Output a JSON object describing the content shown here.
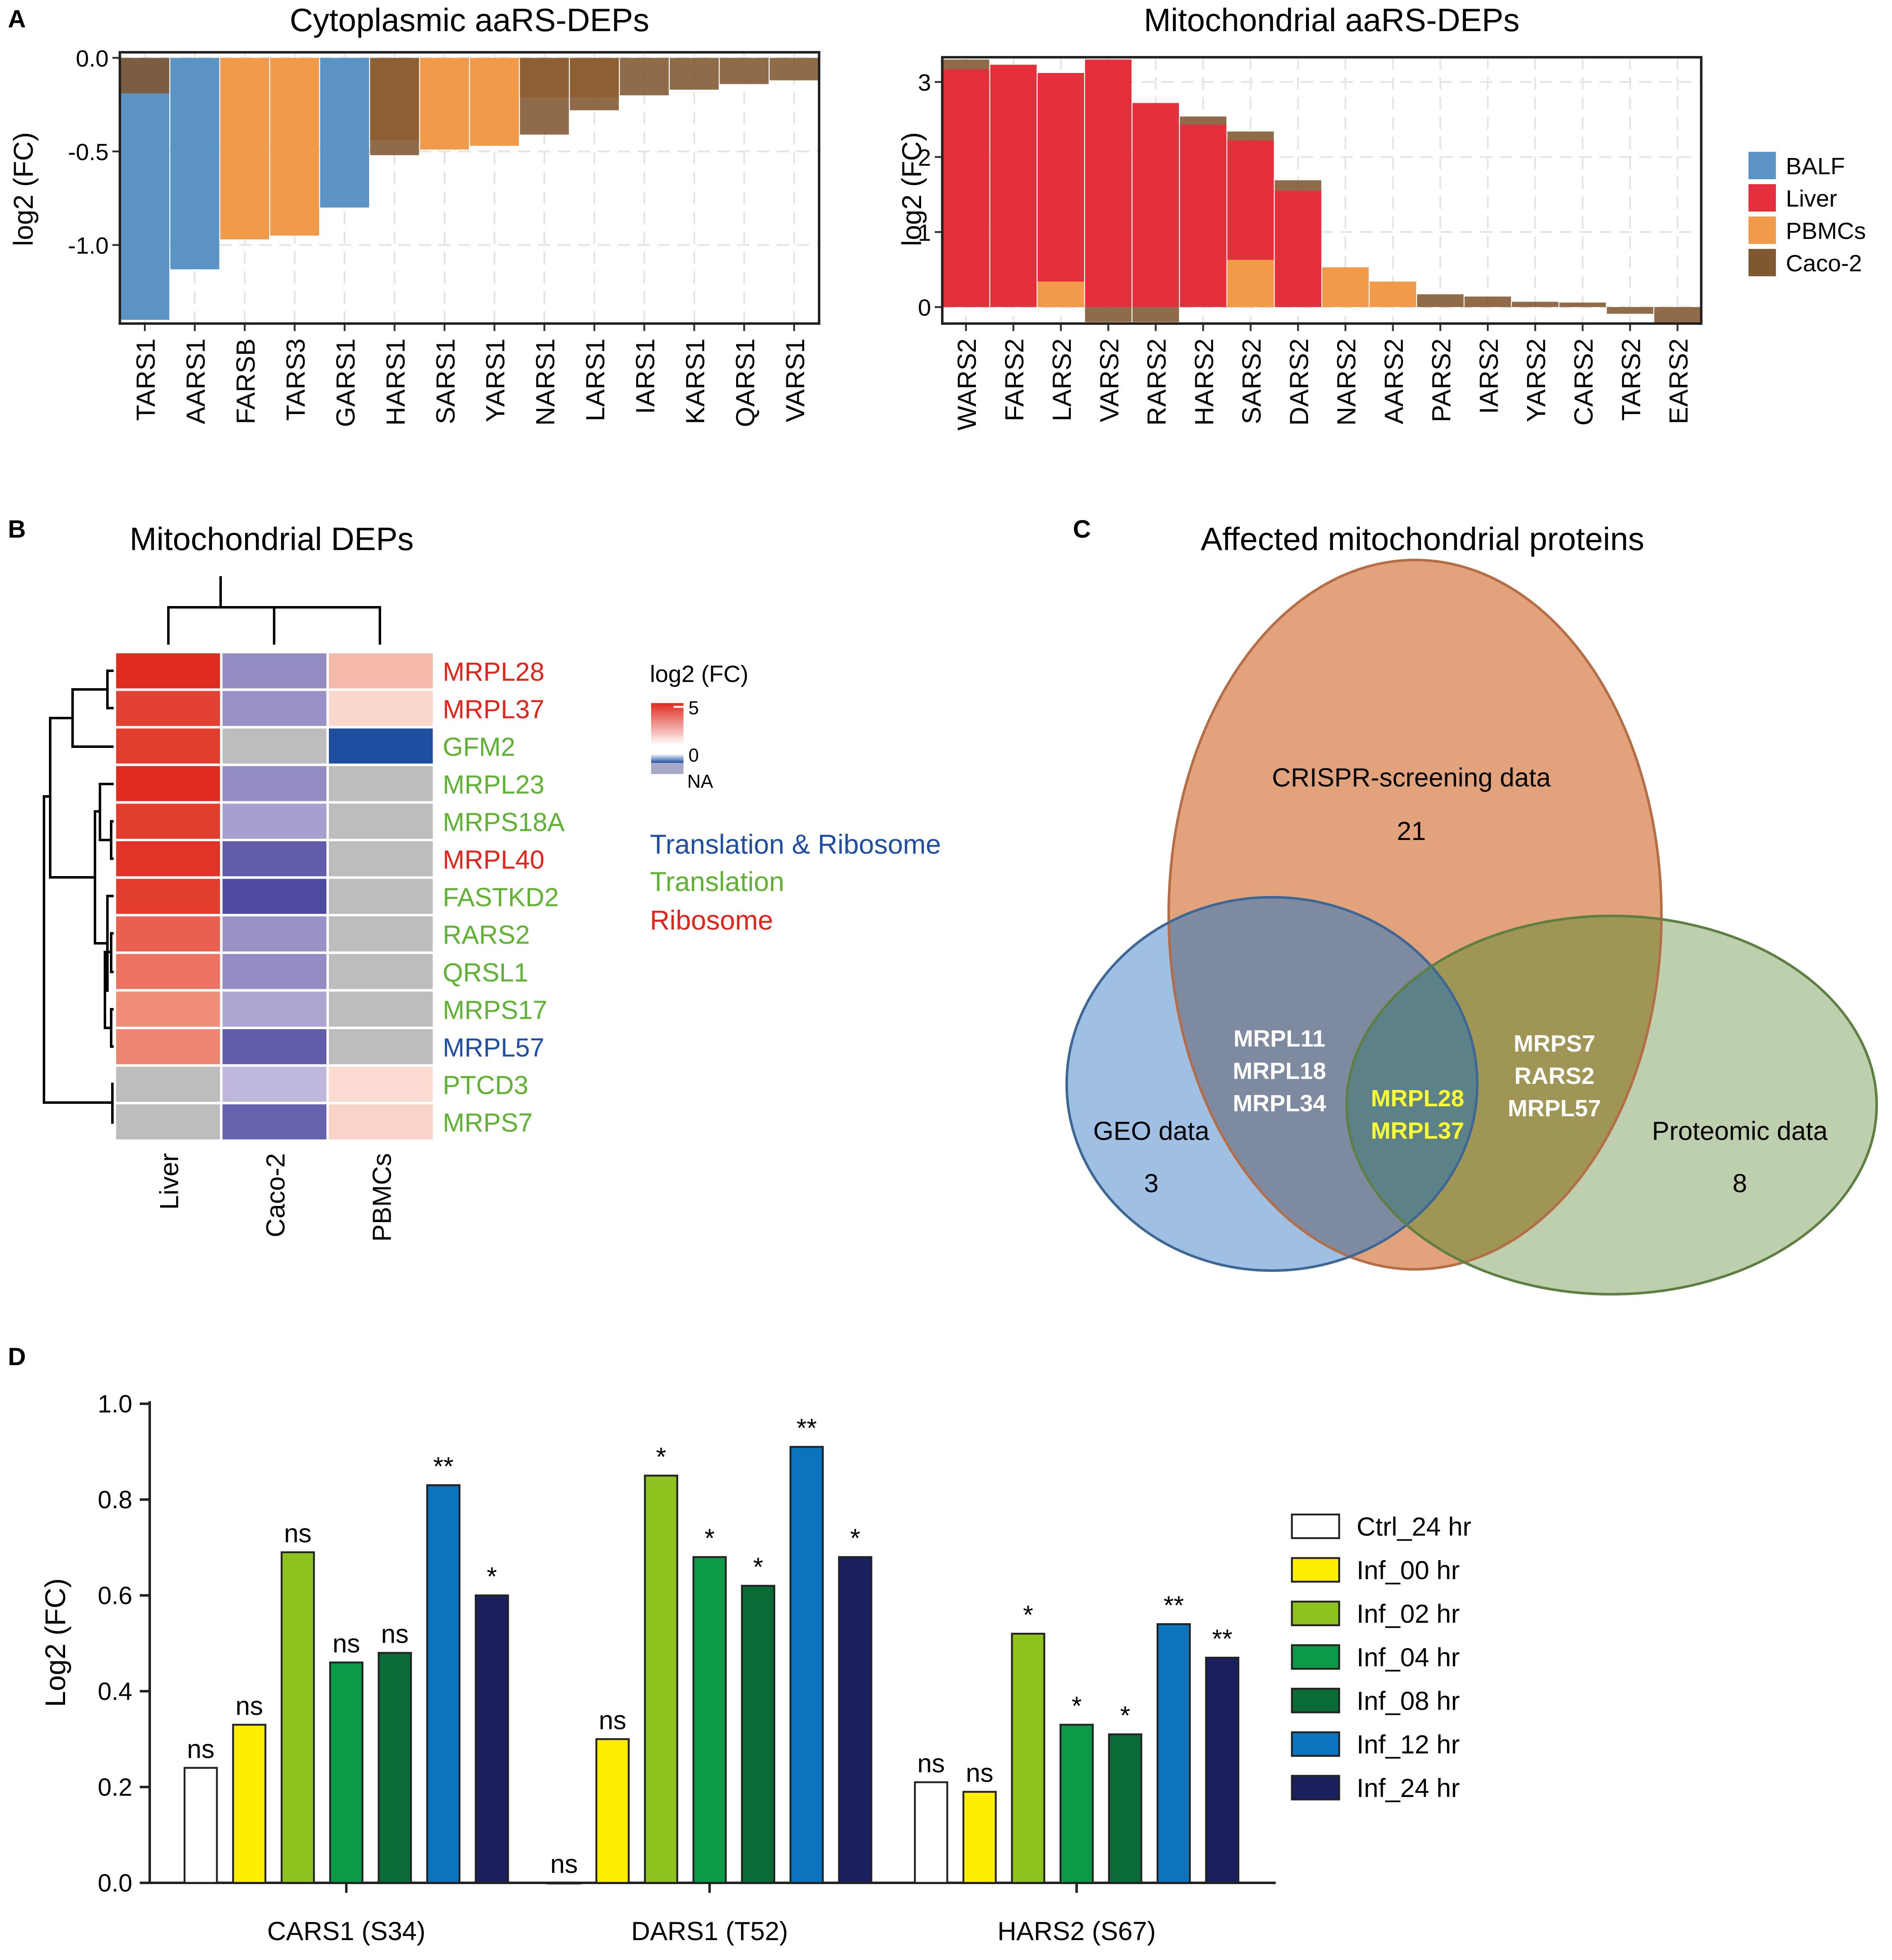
{
  "panel_labels": {
    "a": "A",
    "b": "B",
    "c": "C",
    "d": "D"
  },
  "colors": {
    "BALF": "#5b93c5",
    "Liver": "#e3303c",
    "PBMCs": "#f09a4a",
    "Caco-2": "#7f5730",
    "heat_high": "#e02b20",
    "heat_mid_purple": "#a897c9",
    "heat_low": "#1d4ea0",
    "heat_na": "#bdbdbd",
    "cat_translation_ribosome": "#1f4ea3",
    "cat_translation": "#5fb234",
    "cat_ribosome": "#e1251b",
    "venn_crispr": "#e2a27b",
    "venn_geo": "#8eb5dd",
    "venn_proteomic": "#a3bb8a",
    "highlight": "#ffff33"
  },
  "chart_data": [
    {
      "id": "A1",
      "type": "bar",
      "title": "Cytoplasmic aaRS-DEPs",
      "ylabel": "log2 (FC)",
      "xlabel": "",
      "ylim": [
        -1.42,
        0.03
      ],
      "yticks": [
        0.0,
        -0.5,
        -1.0
      ],
      "ytick_labels": [
        "0.0",
        "-0.5",
        "-1.0"
      ],
      "categories": [
        "TARS1",
        "AARS1",
        "FARSB",
        "TARS3",
        "GARS1",
        "HARS1",
        "SARS1",
        "YARS1",
        "NARS1",
        "LARS1",
        "IARS1",
        "KARS1",
        "QARS1",
        "VARS1"
      ],
      "series": [
        {
          "name": "BALF",
          "values": [
            -1.4,
            -1.13,
            0,
            0,
            -0.8,
            0,
            0,
            0,
            0,
            0,
            0,
            0,
            0,
            0
          ]
        },
        {
          "name": "PBMCs",
          "values": [
            0,
            0,
            -0.97,
            -0.95,
            0,
            -0.44,
            -0.49,
            -0.47,
            -0.21,
            -0.21,
            0,
            0,
            0,
            0
          ]
        },
        {
          "name": "Caco-2",
          "values": [
            -0.19,
            0,
            0,
            0,
            0,
            -0.52,
            0,
            0,
            -0.41,
            -0.28,
            -0.2,
            -0.17,
            -0.14,
            -0.12
          ]
        }
      ]
    },
    {
      "id": "A2",
      "type": "bar",
      "title": "Mitochondrial aaRS-DEPs",
      "ylabel": "log2 (FC)",
      "xlabel": "",
      "ylim": [
        -0.22,
        3.33
      ],
      "yticks": [
        0,
        1,
        2,
        3
      ],
      "ytick_labels": [
        "0",
        "1",
        "2",
        "3"
      ],
      "categories": [
        "WARS2",
        "FARS2",
        "LARS2",
        "VARS2",
        "RARS2",
        "HARS2",
        "SARS2",
        "DARS2",
        "NARS2",
        "AARS2",
        "PARS2",
        "IARS2",
        "YARS2",
        "CARS2",
        "TARS2",
        "EARS2"
      ],
      "series": [
        {
          "name": "Liver",
          "values": [
            3.17,
            3.23,
            3.12,
            3.3,
            2.72,
            2.43,
            2.22,
            1.55,
            0,
            0,
            0,
            0,
            0,
            0,
            0,
            0
          ]
        },
        {
          "name": "PBMCs",
          "values": [
            0,
            0,
            0.34,
            0,
            0,
            0,
            0.63,
            0,
            0.53,
            0.34,
            0,
            0,
            0,
            0,
            0,
            0
          ]
        },
        {
          "name": "Caco-2",
          "values": [
            3.3,
            0,
            0,
            -0.2,
            -0.2,
            2.54,
            2.34,
            1.69,
            0,
            0,
            0.17,
            0.14,
            0.07,
            0.06,
            -0.09,
            -0.22
          ]
        }
      ],
      "legend": {
        "position": "right",
        "entries": [
          "BALF",
          "Liver",
          "PBMCs",
          "Caco-2"
        ]
      }
    },
    {
      "id": "B",
      "type": "heatmap",
      "title": "Mitochondrial DEPs",
      "columns": [
        "Liver",
        "Caco-2",
        "PBMCs"
      ],
      "rows": [
        {
          "name": "MRPL28",
          "category": "Ribosome",
          "values": [
            5.0,
            1.6,
            1.3
          ]
        },
        {
          "name": "MRPL37",
          "category": "Ribosome",
          "values": [
            4.5,
            1.5,
            0.6
          ]
        },
        {
          "name": "GFM2",
          "category": "Translation",
          "values": [
            4.6,
            null,
            -1.0
          ]
        },
        {
          "name": "MRPL23",
          "category": "Translation",
          "values": [
            5.0,
            1.6,
            null
          ]
        },
        {
          "name": "MRPS18A",
          "category": "Translation",
          "values": [
            4.6,
            1.2,
            null
          ]
        },
        {
          "name": "MRPL40",
          "category": "Ribosome",
          "values": [
            4.8,
            2.6,
            null
          ]
        },
        {
          "name": "FASTKD2",
          "category": "Translation",
          "values": [
            4.6,
            3.0,
            null
          ]
        },
        {
          "name": "RARS2",
          "category": "Translation",
          "values": [
            3.8,
            1.5,
            null
          ]
        },
        {
          "name": "QRSL1",
          "category": "Translation",
          "values": [
            3.4,
            1.6,
            null
          ]
        },
        {
          "name": "MRPS17",
          "category": "Translation",
          "values": [
            2.8,
            1.1,
            null
          ]
        },
        {
          "name": "MRPL57",
          "category": "Translation & Ribosome",
          "values": [
            3.0,
            2.6,
            null
          ]
        },
        {
          "name": "PTCD3",
          "category": "Translation",
          "values": [
            null,
            0.7,
            0.5
          ]
        },
        {
          "name": "MRPS7",
          "category": "Translation",
          "values": [
            null,
            2.5,
            0.7
          ]
        }
      ],
      "colorbar": {
        "title": "log2 (FC)",
        "ticks": [
          "5",
          "0"
        ],
        "na_label": "NA"
      },
      "category_legend": [
        "Translation & Ribosome",
        "Translation",
        "Ribosome"
      ]
    },
    {
      "id": "D",
      "type": "bar",
      "ylabel": "Log2 (FC)",
      "xlabel": "",
      "ylim": [
        0,
        1.0
      ],
      "yticks": [
        0.0,
        0.2,
        0.4,
        0.6,
        0.8,
        1.0
      ],
      "ytick_labels": [
        "0.0",
        "0.2",
        "0.4",
        "0.6",
        "0.8",
        "1.0"
      ],
      "categories": [
        "CARS1 (S34)",
        "DARS1 (T52)",
        "HARS2 (S67)"
      ],
      "series": [
        {
          "name": "Ctrl_24 hr",
          "color": "#ffffff",
          "values": [
            0.24,
            0.0,
            0.21
          ],
          "labels": [
            "ns",
            "ns",
            "ns"
          ]
        },
        {
          "name": "Inf_00 hr",
          "color": "#ffee00",
          "values": [
            0.33,
            0.3,
            0.19
          ],
          "labels": [
            "ns",
            "ns",
            "ns"
          ]
        },
        {
          "name": "Inf_02 hr",
          "color": "#8dc21f",
          "values": [
            0.69,
            0.85,
            0.52
          ],
          "labels": [
            "ns",
            "*",
            "*"
          ]
        },
        {
          "name": "Inf_04 hr",
          "color": "#0b9b48",
          "values": [
            0.46,
            0.68,
            0.33
          ],
          "labels": [
            "ns",
            "*",
            "*"
          ]
        },
        {
          "name": "Inf_08 hr",
          "color": "#0a6b36",
          "values": [
            0.48,
            0.62,
            0.31
          ],
          "labels": [
            "ns",
            "*",
            "*"
          ]
        },
        {
          "name": "Inf_12 hr",
          "color": "#0a74be",
          "values": [
            0.83,
            0.91,
            0.54
          ],
          "labels": [
            "**",
            "**",
            "**"
          ]
        },
        {
          "name": "Inf_24 hr",
          "color": "#1b1f5e",
          "values": [
            0.6,
            0.68,
            0.47
          ],
          "labels": [
            "*",
            "*",
            "**"
          ]
        }
      ],
      "legend": {
        "position": "right"
      }
    }
  ],
  "venn": {
    "title": "Affected mitochondrial proteins",
    "sets": [
      {
        "name": "CRISPR-screening data",
        "only_count": "21"
      },
      {
        "name": "GEO data",
        "only_count": "3"
      },
      {
        "name": "Proteomic data",
        "only_count": "8"
      }
    ],
    "crispr_geo": [
      "MRPL11",
      "MRPL18",
      "MRPL34"
    ],
    "crispr_proteomic": [
      "MRPS7",
      "RARS2",
      "MRPL57"
    ],
    "all_three": [
      "MRPL28",
      "MRPL37"
    ]
  }
}
